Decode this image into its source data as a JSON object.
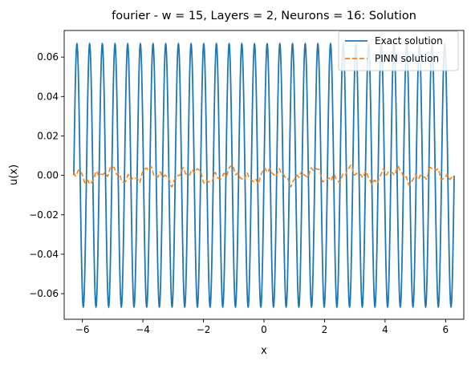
{
  "chart_data": {
    "type": "line",
    "title": "fourier - w = 15, Layers = 2, Neurons = 16: Solution",
    "xlabel": "x",
    "ylabel": "u(x)",
    "xlim": [
      -6.6,
      6.6
    ],
    "ylim": [
      -0.073,
      0.0735
    ],
    "xticks": [
      -6,
      -4,
      -2,
      0,
      2,
      4,
      6
    ],
    "xtick_labels": [
      "−6",
      "−4",
      "−2",
      "0",
      "2",
      "4",
      "6"
    ],
    "yticks": [
      -0.06,
      -0.04,
      -0.02,
      0.0,
      0.02,
      0.04,
      0.06
    ],
    "ytick_labels": [
      "−0.06",
      "−0.04",
      "−0.02",
      "0.00",
      "0.02",
      "0.04",
      "0.06"
    ],
    "grid": false,
    "legend_position": "upper right",
    "series": [
      {
        "name": "Exact solution",
        "color": "#1f77b4",
        "style": "solid",
        "function": "u(x) = sin(15x) / 15",
        "x_range": [
          -6.283,
          6.283
        ],
        "amplitude": 0.0667,
        "frequency": 15
      },
      {
        "name": "PINN solution",
        "color": "#ff7f0e",
        "style": "dashed",
        "x_range": [
          -6.283,
          6.283
        ],
        "approx_amplitude": 0.005,
        "description_values": {
          "min": -0.006,
          "max": 0.006
        }
      }
    ]
  }
}
